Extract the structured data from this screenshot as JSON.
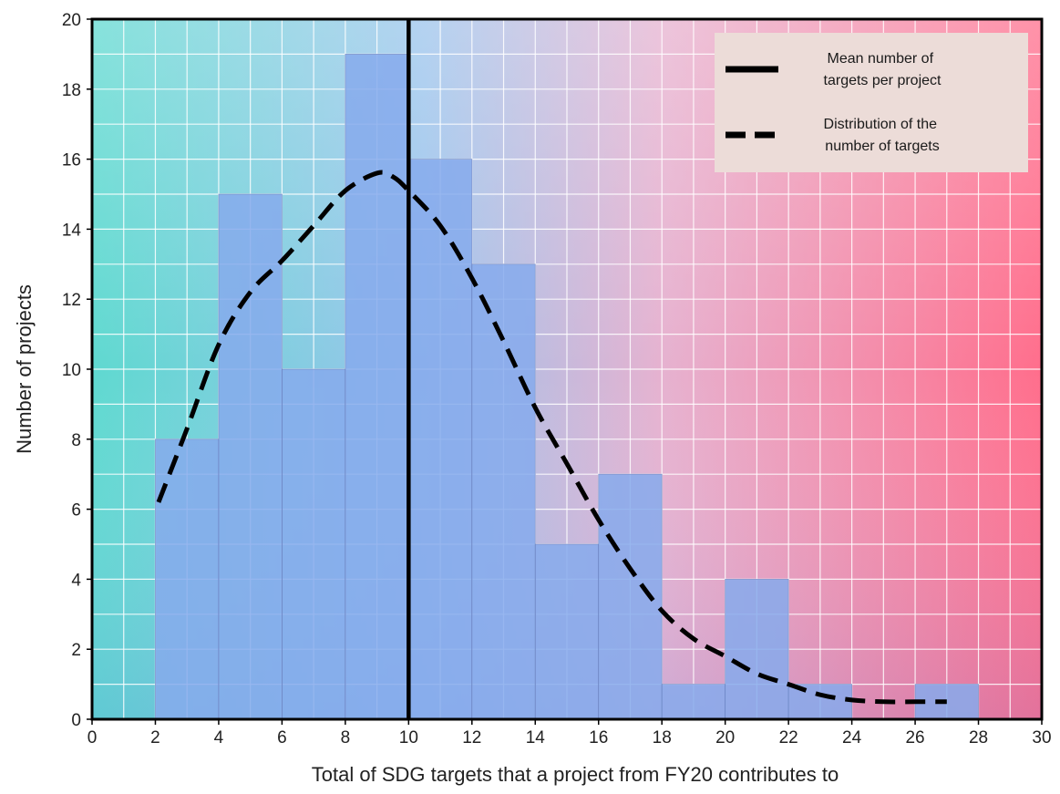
{
  "chart_data": {
    "type": "bar",
    "title": "",
    "xlabel": "Total of SDG targets that a project from FY20 contributes to",
    "ylabel": "Number of projects",
    "xlim": [
      0,
      30
    ],
    "ylim": [
      0,
      20
    ],
    "x_ticks": [
      "0",
      "2",
      "4",
      "6",
      "8",
      "10",
      "12",
      "14",
      "16",
      "18",
      "20",
      "22",
      "24",
      "26",
      "28",
      "30"
    ],
    "y_ticks": [
      "0",
      "2",
      "4",
      "6",
      "8",
      "10",
      "12",
      "14",
      "16",
      "18",
      "20"
    ],
    "grid": true,
    "legend_position": "top-right",
    "bins": [
      {
        "start": 2,
        "end": 4,
        "value": 8
      },
      {
        "start": 4,
        "end": 6,
        "value": 15
      },
      {
        "start": 6,
        "end": 8,
        "value": 10
      },
      {
        "start": 8,
        "end": 10,
        "value": 19
      },
      {
        "start": 10,
        "end": 12,
        "value": 16
      },
      {
        "start": 12,
        "end": 14,
        "value": 13
      },
      {
        "start": 14,
        "end": 16,
        "value": 5
      },
      {
        "start": 16,
        "end": 18,
        "value": 7
      },
      {
        "start": 18,
        "end": 20,
        "value": 1
      },
      {
        "start": 20,
        "end": 22,
        "value": 4
      },
      {
        "start": 22,
        "end": 24,
        "value": 1
      },
      {
        "start": 24,
        "end": 26,
        "value": 0
      },
      {
        "start": 26,
        "end": 28,
        "value": 1
      }
    ],
    "mean_line": {
      "x": 10,
      "label_lines": [
        "Mean number of",
        "targets per project"
      ]
    },
    "distribution_curve": {
      "label_lines": [
        "Distribution of the",
        "number of targets"
      ],
      "x": [
        2.1,
        3,
        4,
        5,
        6,
        7,
        8,
        9,
        9.5,
        10,
        11,
        12,
        13,
        14,
        15,
        16,
        17,
        18,
        19,
        20,
        21,
        22,
        23,
        24,
        25,
        26,
        27
      ],
      "y": [
        6.2,
        8.3,
        10.7,
        12.2,
        13.1,
        14.1,
        15.1,
        15.6,
        15.5,
        15.1,
        14.1,
        12.6,
        10.8,
        8.9,
        7.3,
        5.7,
        4.3,
        3.1,
        2.3,
        1.8,
        1.3,
        1.0,
        0.7,
        0.55,
        0.5,
        0.5,
        0.5
      ]
    },
    "colors": {
      "bar_fill": "#86aaec",
      "bar_stroke": "#5a6fb0",
      "line": "#000000",
      "legend_bg": "#ecdcd8",
      "grid": "#ffffff",
      "bg_left": "#63dcc8",
      "bg_right": "#ff6e8c"
    }
  }
}
